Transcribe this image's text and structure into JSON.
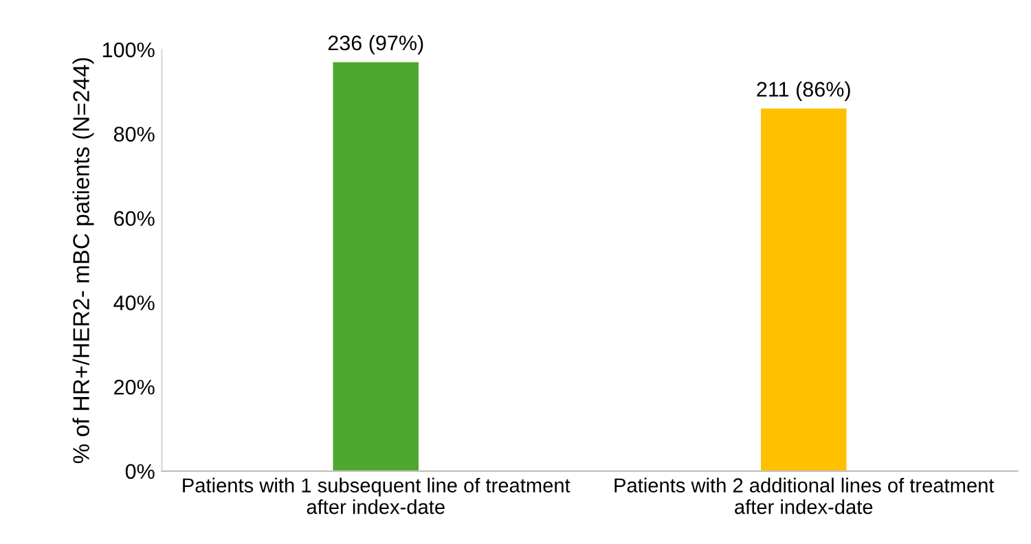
{
  "chart_data": {
    "type": "bar",
    "ylabel": "% of HR+/HER2- mBC patients (N=244)",
    "categories": [
      "Patients with 1 subsequent line of treatment\nafter index-date",
      "Patients with 2 additional lines of treatment\nafter index-date"
    ],
    "values": [
      97,
      86
    ],
    "colors": [
      "#4ea72e",
      "#ffc000"
    ],
    "value_labels": [
      "236 (97%)",
      "211 (86%)"
    ],
    "ylim": [
      0,
      100
    ],
    "yticks": [
      {
        "value": 0,
        "label": "0%"
      },
      {
        "value": 20,
        "label": "20%"
      },
      {
        "value": 40,
        "label": "40%"
      },
      {
        "value": 60,
        "label": "60%"
      },
      {
        "value": 80,
        "label": "80%"
      },
      {
        "value": 100,
        "label": "100%"
      }
    ],
    "grid": false,
    "legend": false
  }
}
